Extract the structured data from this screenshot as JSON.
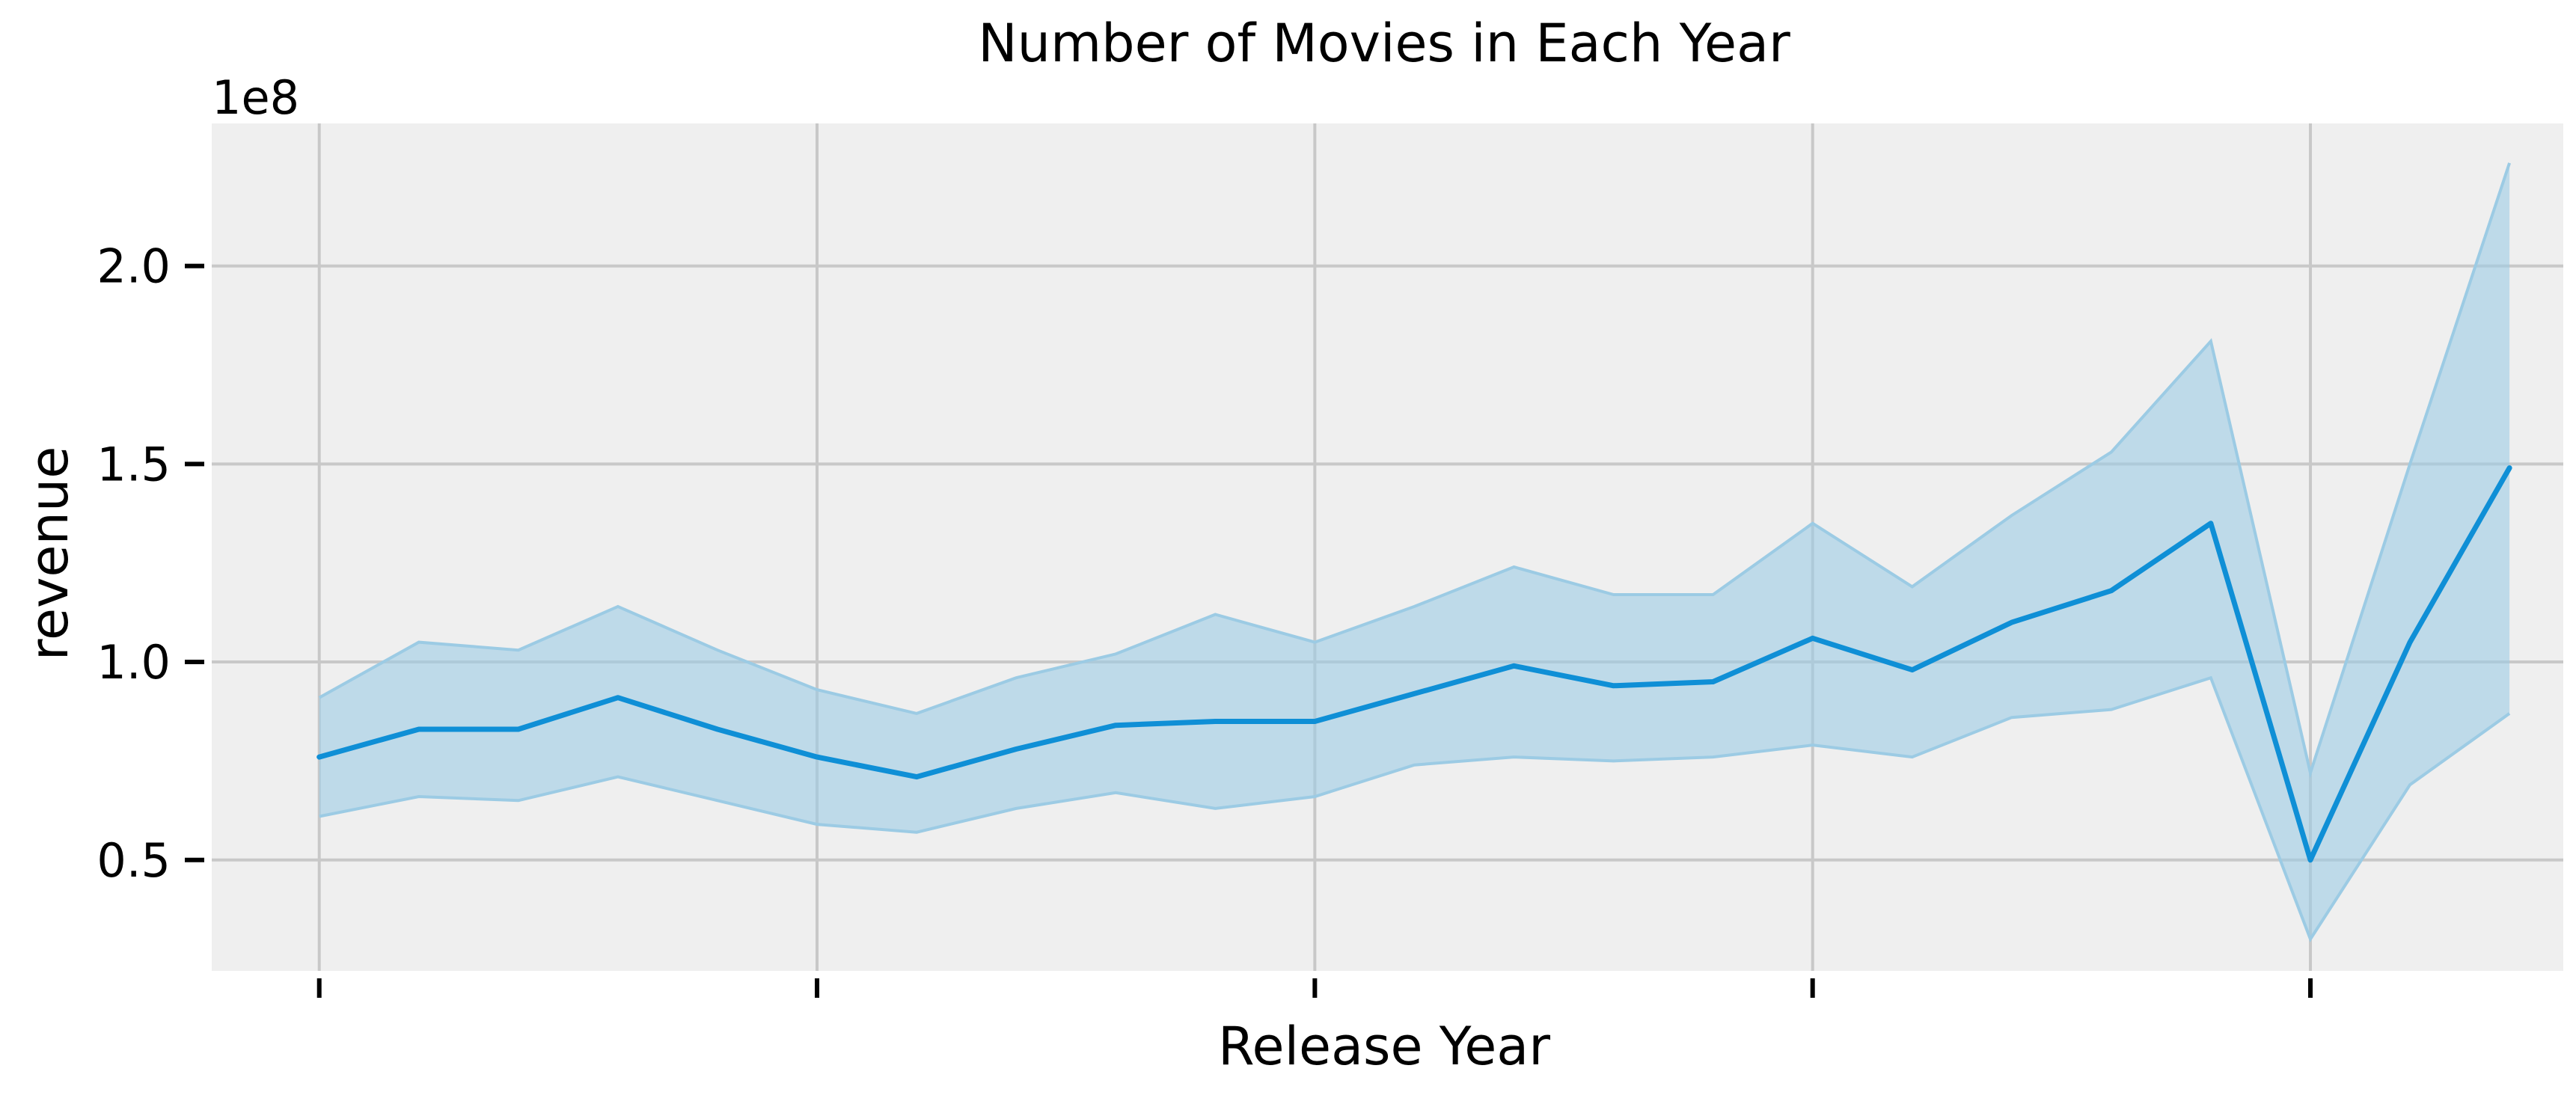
{
  "chart_data": {
    "type": "line",
    "title": "Number of Movies in Each Year",
    "xlabel": "Release Year",
    "ylabel": "revenue",
    "y_offset_label": "1e8",
    "y_multiplier": 100000000,
    "ylim": [
      0.22,
      2.36
    ],
    "y_ticks": [
      0.5,
      1.0,
      1.5,
      2.0
    ],
    "y_tick_labels": [
      "0.5",
      "1.0",
      "1.5",
      "2.0"
    ],
    "x_ticks": [
      0,
      5,
      10,
      15,
      20
    ],
    "x_tick_labels": [
      "",
      "",
      "",
      "",
      ""
    ],
    "xlim": [
      -1.08,
      22.54
    ],
    "grid": true,
    "colors": {
      "line": "#0f8fd6",
      "band": "#9ccbe4",
      "background": "#efefef",
      "grid": "#c8c8c8"
    },
    "series": [
      {
        "x": [
          0,
          1,
          2,
          3,
          4,
          5,
          6,
          7,
          8,
          9,
          10,
          11,
          12,
          13,
          14,
          15,
          16,
          17,
          18,
          19,
          20,
          21,
          22
        ],
        "values": [
          0.76,
          0.83,
          0.83,
          0.91,
          0.83,
          0.76,
          0.71,
          0.78,
          0.84,
          0.85,
          0.85,
          0.92,
          0.99,
          0.94,
          0.95,
          1.06,
          0.98,
          1.1,
          1.18,
          1.35,
          0.5,
          1.05,
          1.49
        ],
        "ci_upper": [
          0.91,
          1.05,
          1.03,
          1.14,
          1.03,
          0.93,
          0.87,
          0.96,
          1.02,
          1.12,
          1.05,
          1.14,
          1.24,
          1.17,
          1.17,
          1.35,
          1.19,
          1.37,
          1.53,
          1.81,
          0.72,
          1.5,
          2.26
        ],
        "ci_lower": [
          0.61,
          0.66,
          0.65,
          0.71,
          0.65,
          0.59,
          0.57,
          0.63,
          0.67,
          0.63,
          0.66,
          0.74,
          0.76,
          0.75,
          0.76,
          0.79,
          0.76,
          0.86,
          0.88,
          0.96,
          0.3,
          0.69,
          0.87
        ]
      }
    ]
  }
}
